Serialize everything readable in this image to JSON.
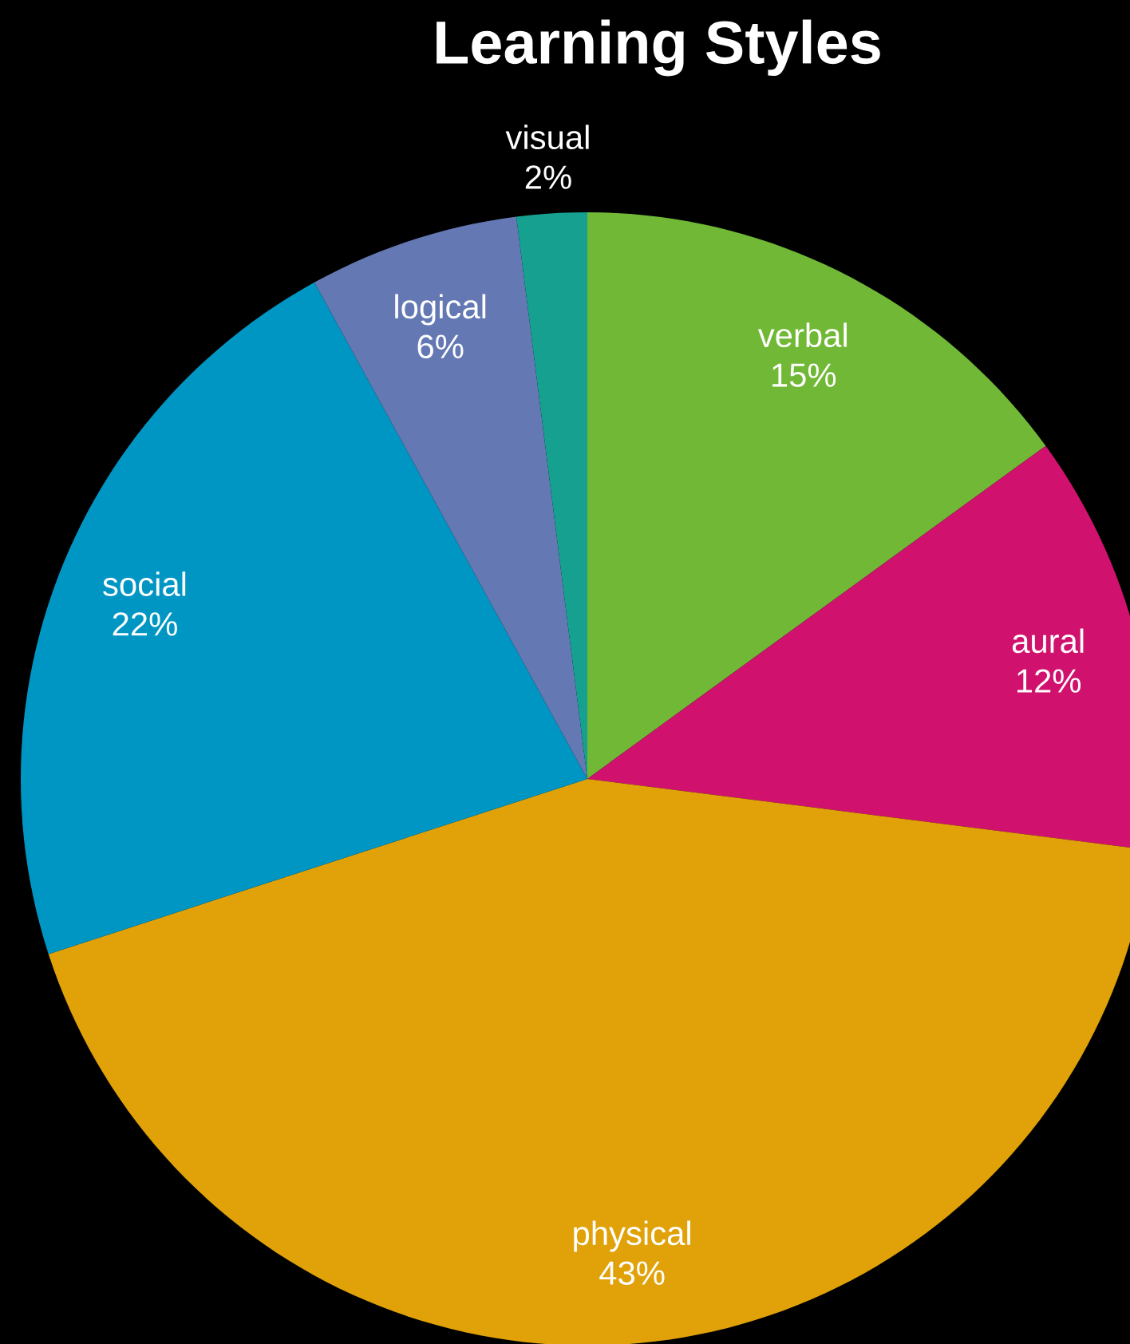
{
  "chart_data": {
    "type": "pie",
    "title": "Learning Styles",
    "categories": [
      "verbal",
      "aural",
      "physical",
      "social",
      "logical",
      "visual"
    ],
    "values": [
      15,
      12,
      43,
      22,
      6,
      2
    ],
    "value_labels": [
      "15%",
      "12%",
      "43%",
      "22%",
      "6%",
      "2%"
    ],
    "colors": [
      "#70b835",
      "#d0126e",
      "#e0a208",
      "#0096c4",
      "#6478b4",
      "#16a090"
    ]
  }
}
